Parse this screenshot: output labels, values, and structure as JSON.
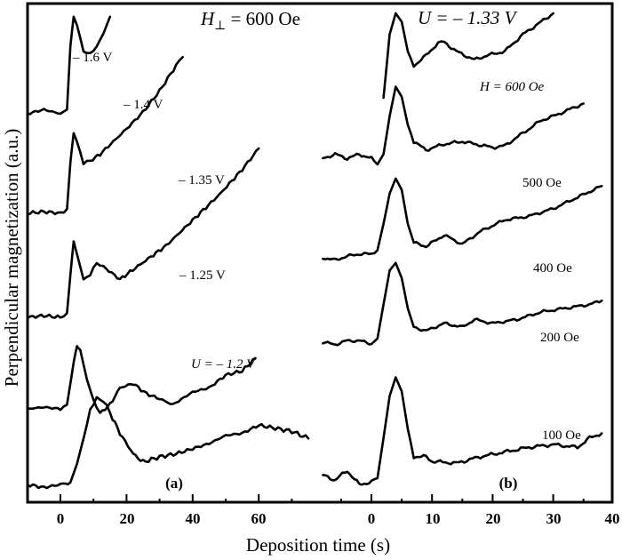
{
  "figure": {
    "ylabel": "Perpendicular magnetization (a.u.)",
    "xlabel": "Deposition time (s)",
    "panel_a": {
      "label": "(a)",
      "title_symbol": "H",
      "title_subscript": "⊥",
      "title_rest": " = 600 Oe",
      "ticks": [
        "0",
        "20",
        "40",
        "60"
      ]
    },
    "panel_b": {
      "label": "(b)",
      "title": "U = – 1.33 V",
      "ticks": [
        "0",
        "10",
        "20",
        "30",
        "40"
      ]
    }
  },
  "chart_data": [
    {
      "type": "line",
      "panel": "(a)",
      "title": "H⊥ = 600 Oe",
      "xlabel": "Deposition time (s)",
      "ylabel": "Perpendicular magnetization (a.u.)",
      "xlim": [
        -10,
        75
      ],
      "xticks": [
        0,
        20,
        40,
        60
      ],
      "grid": false,
      "note": "Curves vertically offset; y in arbitrary units (higher = larger magnetization), offsets stacked top-to-bottom",
      "series": [
        {
          "name": "-1.6 V",
          "label": "– 1.6 V",
          "offset": 4,
          "x": [
            -10,
            -5,
            0,
            2,
            3,
            4,
            5,
            7,
            9,
            11,
            13,
            15
          ],
          "y": [
            0,
            0.05,
            0,
            0.05,
            0.8,
            1.15,
            1.05,
            0.75,
            0.7,
            0.8,
            0.95,
            1.15
          ]
        },
        {
          "name": "-1.4 V",
          "label": "– 1.4 V",
          "offset": 3,
          "x": [
            -10,
            -5,
            0,
            2,
            3,
            4,
            5,
            7,
            9,
            12,
            16,
            20,
            25,
            30,
            35,
            37
          ],
          "y": [
            0,
            0.02,
            0,
            0.05,
            0.6,
            0.95,
            0.85,
            0.6,
            0.62,
            0.7,
            0.85,
            1.0,
            1.2,
            1.45,
            1.75,
            1.85
          ]
        },
        {
          "name": "-1.35 V",
          "label": "– 1.35 V",
          "offset": 2,
          "x": [
            -10,
            -5,
            0,
            2,
            3,
            4,
            5,
            7,
            9,
            11,
            13,
            18,
            25,
            32,
            40,
            48,
            55,
            60
          ],
          "y": [
            0,
            0.02,
            0,
            0.05,
            0.5,
            0.9,
            0.75,
            0.45,
            0.5,
            0.65,
            0.6,
            0.45,
            0.65,
            0.85,
            1.15,
            1.45,
            1.75,
            2.0
          ]
        },
        {
          "name": "-1.25 V",
          "label": "– 1.25 V",
          "offset": 1,
          "x": [
            -10,
            -5,
            0,
            2,
            4,
            5,
            6,
            8,
            10,
            12,
            15,
            18,
            22,
            26,
            30,
            34,
            40,
            45,
            50,
            55,
            59
          ],
          "y": [
            0,
            0.02,
            0,
            0.05,
            0.55,
            0.75,
            0.7,
            0.35,
            0.1,
            -0.05,
            0.05,
            0.25,
            0.3,
            0.18,
            0.12,
            0.05,
            0.2,
            0.25,
            0.4,
            0.45,
            0.6
          ]
        },
        {
          "name": "-1.2 V",
          "label": "U = – 1.2 V",
          "offset": 0,
          "x": [
            -10,
            -5,
            0,
            3,
            5,
            7,
            9,
            11,
            13,
            15,
            18,
            22,
            25,
            30,
            35,
            40,
            45,
            50,
            55,
            60,
            65,
            70,
            75
          ],
          "y": [
            0,
            -0.03,
            0,
            0.02,
            0.2,
            0.45,
            0.72,
            0.85,
            0.82,
            0.7,
            0.5,
            0.3,
            0.22,
            0.27,
            0.3,
            0.35,
            0.4,
            0.48,
            0.5,
            0.58,
            0.55,
            0.52,
            0.45
          ]
        }
      ]
    },
    {
      "type": "line",
      "panel": "(b)",
      "title": "U = – 1.33 V",
      "xlabel": "Deposition time (s)",
      "ylabel": "Perpendicular magnetization (a.u.)",
      "xlim": [
        -8,
        40
      ],
      "xticks": [
        0,
        10,
        20,
        30,
        40
      ],
      "grid": false,
      "note": "Curves vertically offset; y in arbitrary units",
      "series": [
        {
          "name": "600 Oe",
          "label": "H = 600 Oe",
          "offset": 4,
          "x": [
            2,
            3,
            4,
            5,
            6,
            7,
            9,
            11,
            12,
            14,
            17,
            19,
            22,
            25,
            28,
            30
          ],
          "y": [
            0.0,
            0.75,
            1.0,
            0.9,
            0.55,
            0.38,
            0.5,
            0.65,
            0.66,
            0.55,
            0.45,
            0.5,
            0.55,
            0.75,
            0.9,
            1.0
          ]
        },
        {
          "name": "500 Oe",
          "label": "500 Oe",
          "offset": 3,
          "x": [
            -8,
            -6,
            -4,
            -2,
            0,
            1,
            2,
            3,
            4,
            5,
            6,
            7,
            9,
            12,
            15,
            20,
            22,
            25,
            28,
            30,
            35
          ],
          "y": [
            0.05,
            0.1,
            0.05,
            0.1,
            0.05,
            -0.02,
            0.1,
            0.55,
            0.9,
            0.78,
            0.45,
            0.25,
            0.15,
            0.22,
            0.25,
            0.18,
            0.2,
            0.35,
            0.5,
            0.55,
            0.7
          ]
        },
        {
          "name": "400 Oe",
          "label": "400 Oe",
          "offset": 2,
          "x": [
            -8,
            -6,
            -4,
            -2,
            0,
            1,
            2,
            3,
            4,
            5,
            6,
            7,
            9,
            12,
            15,
            18,
            22,
            26,
            30,
            34,
            38
          ],
          "y": [
            0.0,
            -0.03,
            0.02,
            0.05,
            0.05,
            0.1,
            0.45,
            0.85,
            1.05,
            0.9,
            0.45,
            0.2,
            0.15,
            0.3,
            0.18,
            0.35,
            0.5,
            0.55,
            0.65,
            0.8,
            0.95
          ]
        },
        {
          "name": "200 Oe",
          "label": "200 Oe",
          "offset": 1,
          "x": [
            -8,
            -6,
            -4,
            -2,
            0,
            1,
            2,
            3,
            4,
            5,
            6,
            7,
            9,
            12,
            15,
            17,
            20,
            24,
            28,
            32,
            36,
            38
          ],
          "y": [
            0.0,
            -0.03,
            0.02,
            0.02,
            -0.02,
            0.05,
            0.5,
            0.95,
            1.05,
            0.85,
            0.45,
            0.2,
            0.15,
            0.25,
            0.2,
            0.3,
            0.25,
            0.3,
            0.4,
            0.45,
            0.5,
            0.55
          ]
        },
        {
          "name": "100 Oe",
          "label": "100 Oe",
          "offset": 0,
          "x": [
            -8,
            -6,
            -4,
            -2,
            0,
            1,
            2,
            3,
            4,
            5,
            6,
            7,
            9,
            10,
            14,
            18,
            22,
            26,
            30,
            34,
            36,
            38
          ],
          "y": [
            0.05,
            0.0,
            0.1,
            -0.05,
            -0.02,
            0.02,
            0.45,
            0.9,
            1.1,
            0.95,
            0.55,
            0.25,
            0.25,
            0.2,
            0.18,
            0.25,
            0.3,
            0.35,
            0.38,
            0.35,
            0.45,
            0.5
          ]
        }
      ]
    }
  ]
}
